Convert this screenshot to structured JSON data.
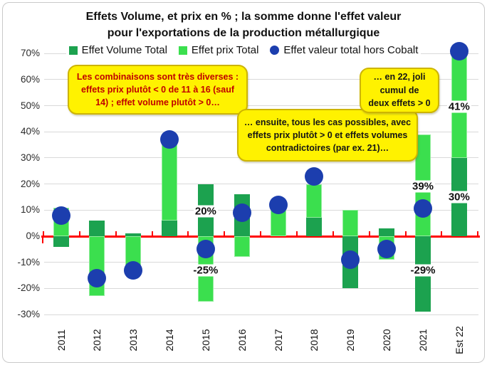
{
  "title": {
    "line1": "Effets Volume, et prix en % ; la somme donne l'effet valeur",
    "line2": "pour l'exportations de la production métallurgique"
  },
  "legend": {
    "items": [
      {
        "label": "Effet Volume Total",
        "marker": "square",
        "color": "#1ca24f"
      },
      {
        "label": "Effet prix Total",
        "marker": "square",
        "color": "#3bdf4e"
      },
      {
        "label": "Effet valeur total hors Cobalt",
        "marker": "circle",
        "color": "#1c3eae"
      }
    ]
  },
  "annotations": {
    "box1": {
      "line1": "Les combinaisons sont très diverses :",
      "line2": "effets prix plutôt < 0 de 11 à 16 (sauf",
      "line3": "14) ; effet volume plutôt > 0…",
      "text_color": "#c00000"
    },
    "box2": {
      "line1": "… ensuite, tous les cas possibles, avec",
      "line2": "effets prix plutôt > 0 et effets volumes",
      "line3": "contradictoires (par ex.  21)…",
      "text_color": "#151515"
    },
    "box3": {
      "line1": "… en 22, joli",
      "line2": "cumul de",
      "line3": "deux effets > 0",
      "text_color": "#151515"
    }
  },
  "chart_data": {
    "type": "bar",
    "stacked": true,
    "title": "Effets Volume, et prix en % ; la somme donne l'effet valeur pour l'exportations de la production métallurgique",
    "categories": [
      "2011",
      "2012",
      "2013",
      "2014",
      "2015",
      "2016",
      "2017",
      "2018",
      "2019",
      "2020",
      "2021",
      "Est 22"
    ],
    "series": [
      {
        "name": "Effet Volume Total",
        "type": "bar",
        "color": "#1ca24f",
        "values": [
          -4,
          6,
          1,
          6,
          20,
          16,
          0,
          7,
          -20,
          3,
          -29,
          30
        ]
      },
      {
        "name": "Effet prix Total",
        "type": "bar",
        "color": "#3bdf4e",
        "values": [
          11,
          -23,
          -14,
          32,
          -25,
          -8,
          12,
          13,
          10,
          -9,
          39,
          41
        ]
      },
      {
        "name": "Effet valeur total hors Cobalt",
        "type": "scatter",
        "color": "#1c3eae",
        "values": [
          8,
          -16,
          -13,
          37,
          -5,
          9,
          12,
          23,
          -9,
          -5,
          10.5,
          71
        ]
      }
    ],
    "bar_labels": [
      {
        "category": "2015",
        "text": "20%",
        "at_pct": 9.5
      },
      {
        "category": "2015",
        "text": "-25%",
        "at_pct": -13
      },
      {
        "category": "2021",
        "text": "39%",
        "at_pct": 19
      },
      {
        "category": "2021",
        "text": "-29%",
        "at_pct": -13
      },
      {
        "category": "Est 22",
        "text": "41%",
        "at_pct": 49.5
      },
      {
        "category": "Est 22",
        "text": "30%",
        "at_pct": 15
      }
    ],
    "y_axis": {
      "min": -30,
      "max": 70,
      "step": 10,
      "tick_labels": [
        "70%",
        "60%",
        "50%",
        "40%",
        "30%",
        "20%",
        "10%",
        "0%",
        "-10%",
        "-20%",
        "-30%"
      ]
    },
    "zero_line_color": "#ff0000",
    "grid": true,
    "legend_position": "top"
  }
}
